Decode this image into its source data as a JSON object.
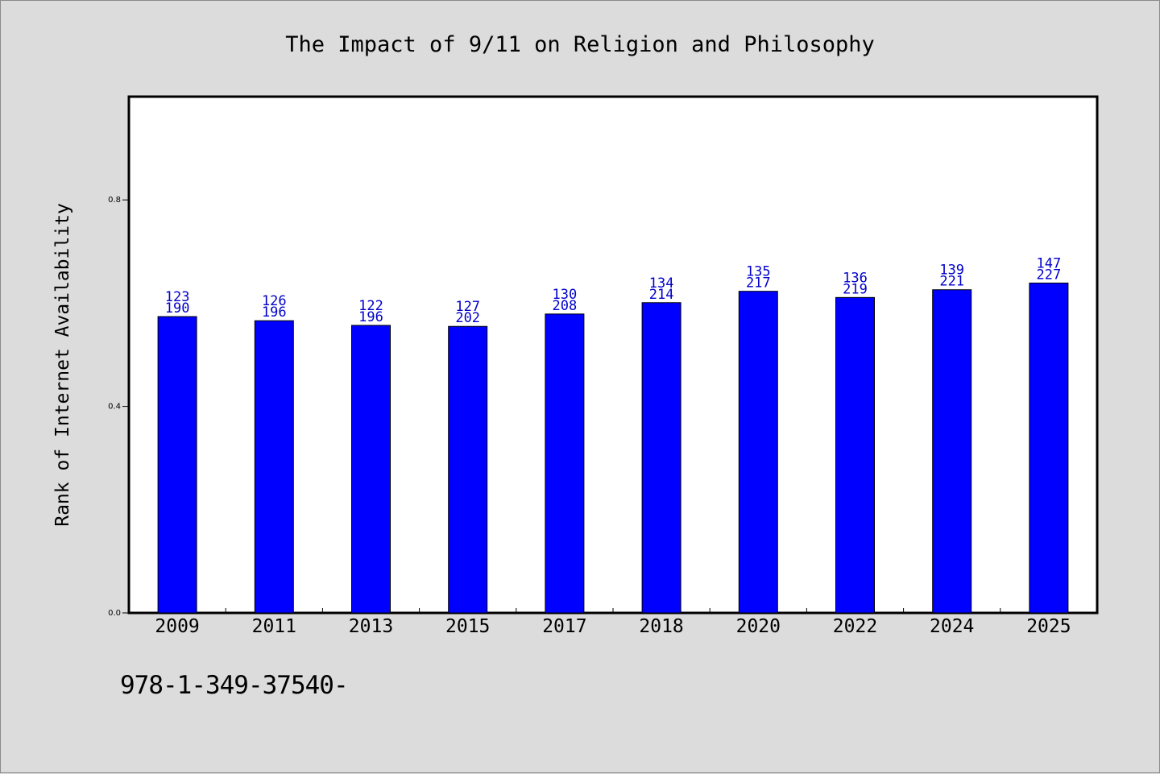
{
  "chart_data": {
    "type": "bar",
    "title": "The Impact of 9/11 on Religion and Philosophy",
    "xlabel": "",
    "ylabel": "Rank of Internet Availability",
    "categories": [
      "2009",
      "2011",
      "2013",
      "2015",
      "2017",
      "2018",
      "2020",
      "2022",
      "2024",
      "2025"
    ],
    "values": [
      0.574,
      0.566,
      0.557,
      0.555,
      0.579,
      0.601,
      0.623,
      0.611,
      0.626,
      0.639
    ],
    "bar_labels": [
      [
        "123",
        "190"
      ],
      [
        "126",
        "196"
      ],
      [
        "122",
        "196"
      ],
      [
        "127",
        "202"
      ],
      [
        "130",
        "208"
      ],
      [
        "134",
        "214"
      ],
      [
        "135",
        "217"
      ],
      [
        "136",
        "219"
      ],
      [
        "139",
        "221"
      ],
      [
        "147",
        "227"
      ]
    ],
    "ylim": [
      0,
      1.0
    ],
    "yticks": [
      "0.0",
      "0.4",
      "0.8"
    ],
    "grid": false,
    "colors": {
      "bar": "#0000ff",
      "label": "#0000cc",
      "background": "#dcdcdc",
      "plot_background": "#ffffff"
    }
  },
  "footer": {
    "text": "978-1-349-37540-"
  }
}
